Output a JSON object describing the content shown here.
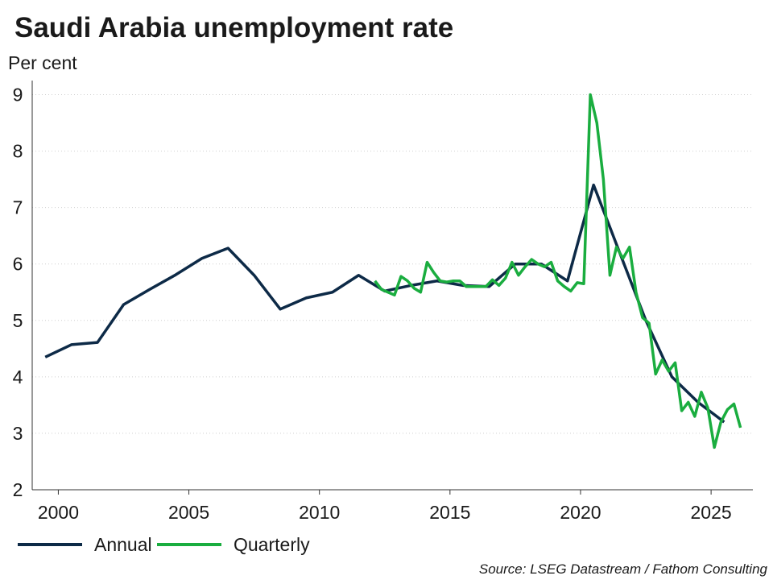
{
  "chart_data": {
    "type": "line",
    "title": "Saudi Arabia unemployment rate",
    "subtitle": "Per cent",
    "source": "Source: LSEG Datastream / Fathom Consulting",
    "xlim": [
      1999,
      2026.6
    ],
    "ylim": [
      2,
      9.25
    ],
    "xticks": [
      2000,
      2005,
      2010,
      2015,
      2020,
      2025
    ],
    "yticks": [
      2,
      3,
      4,
      5,
      6,
      7,
      8,
      9
    ],
    "grid": true,
    "legend": "bottom-left",
    "series": [
      {
        "name": "Annual",
        "color": "#0d2a47",
        "x": [
          1999.5,
          2000.5,
          2001.5,
          2002.5,
          2003.5,
          2004.5,
          2005.5,
          2006.5,
          2007.5,
          2008.5,
          2009.5,
          2010.5,
          2011.5,
          2012.5,
          2013.5,
          2014.5,
          2015.5,
          2016.5,
          2017.5,
          2018.5,
          2019.5,
          2020.5,
          2021.5,
          2022.5,
          2023.5,
          2024.5,
          2025.5
        ],
        "values": [
          4.35,
          4.57,
          4.61,
          5.28,
          5.55,
          5.81,
          6.1,
          6.28,
          5.8,
          5.2,
          5.4,
          5.5,
          5.8,
          5.52,
          5.62,
          5.7,
          5.62,
          5.6,
          6.0,
          6.0,
          5.7,
          7.4,
          6.2,
          5.0,
          4.0,
          3.55,
          3.2
        ]
      },
      {
        "name": "Quarterly",
        "color": "#1aad3f",
        "x": [
          2012.125,
          2012.375,
          2012.625,
          2012.875,
          2013.125,
          2013.375,
          2013.625,
          2013.875,
          2014.125,
          2014.375,
          2014.625,
          2014.875,
          2015.125,
          2015.375,
          2015.625,
          2015.875,
          2016.125,
          2016.375,
          2016.625,
          2016.875,
          2017.125,
          2017.375,
          2017.625,
          2017.875,
          2018.125,
          2018.375,
          2018.625,
          2018.875,
          2019.125,
          2019.375,
          2019.625,
          2019.875,
          2020.125,
          2020.375,
          2020.625,
          2020.875,
          2021.125,
          2021.375,
          2021.625,
          2021.875,
          2022.125,
          2022.375,
          2022.625,
          2022.875,
          2023.125,
          2023.375,
          2023.625,
          2023.875,
          2024.125,
          2024.375,
          2024.625,
          2024.875,
          2025.125,
          2025.375,
          2025.625,
          2025.875,
          2026.125
        ],
        "values": [
          5.7,
          5.55,
          5.5,
          5.45,
          5.78,
          5.7,
          5.57,
          5.5,
          6.03,
          5.85,
          5.7,
          5.68,
          5.7,
          5.7,
          5.6,
          5.6,
          5.6,
          5.6,
          5.72,
          5.62,
          5.75,
          6.03,
          5.8,
          5.95,
          6.08,
          6.0,
          5.95,
          6.03,
          5.7,
          5.6,
          5.52,
          5.67,
          5.65,
          9.0,
          8.5,
          7.5,
          5.8,
          6.3,
          6.1,
          6.3,
          5.5,
          5.05,
          4.95,
          4.05,
          4.3,
          4.1,
          4.25,
          3.4,
          3.55,
          3.3,
          3.73,
          3.45,
          2.75,
          3.2,
          3.42,
          3.52,
          3.1
        ]
      }
    ]
  }
}
